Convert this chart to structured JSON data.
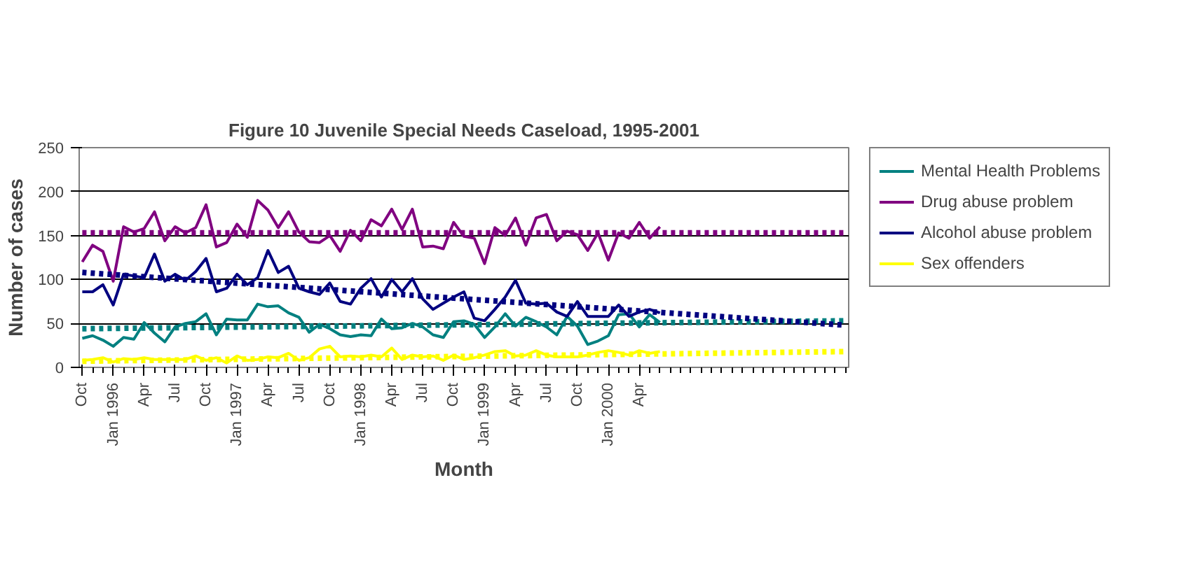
{
  "chart_data": {
    "type": "line",
    "title": "Figure 10 Juvenile Special Needs Caseload, 1995-2001",
    "xlabel": "Month",
    "ylabel": "Number of cases",
    "categories": [
      "Oct",
      null,
      null,
      "Jan 1996",
      null,
      null,
      "Apr",
      null,
      null,
      "Jul",
      null,
      null,
      "Oct",
      null,
      null,
      "Jan 1997",
      null,
      null,
      "Apr",
      null,
      null,
      "Jul",
      null,
      null,
      "Oct",
      null,
      null,
      "Jan 1998",
      null,
      null,
      "Apr",
      null,
      null,
      "Jul",
      null,
      null,
      "Oct",
      null,
      null,
      "Jan 1999",
      null,
      null,
      "Apr",
      null,
      null,
      "Jul",
      null,
      null,
      "Oct",
      null,
      null,
      "Jan 2000",
      null,
      null,
      "Apr",
      null,
      null,
      null,
      null,
      null,
      null,
      null,
      null,
      null,
      null,
      null,
      null,
      null,
      null,
      null,
      null,
      null,
      null,
      null,
      null
    ],
    "ylim": [
      0,
      250
    ],
    "yticks": [
      0,
      50,
      100,
      150,
      200,
      250
    ],
    "grid": "y",
    "legend": "right",
    "marker": "none",
    "series": [
      {
        "name": "Mental Health Problems",
        "color": "#008080",
        "values": [
          33,
          36,
          31,
          24,
          34,
          32,
          51,
          39,
          29,
          46,
          50,
          52,
          61,
          37,
          55,
          54,
          54,
          72,
          69,
          70,
          62,
          57,
          40,
          49,
          44,
          37,
          35,
          37,
          36,
          55,
          44,
          45,
          50,
          46,
          37,
          34,
          52,
          53,
          49,
          34,
          46,
          61,
          47,
          57,
          52,
          46,
          37,
          58,
          47,
          26,
          30,
          36,
          60,
          61,
          46,
          60,
          51,
          null,
          null,
          null,
          null,
          null,
          null,
          null,
          null,
          null,
          null,
          null,
          null,
          null,
          null,
          null,
          null,
          null,
          null
        ]
      },
      {
        "name": "Drug abuse problem",
        "color": "#800080",
        "values": [
          120,
          139,
          132,
          98,
          160,
          154,
          158,
          177,
          144,
          160,
          153,
          159,
          185,
          137,
          142,
          163,
          148,
          190,
          179,
          159,
          177,
          154,
          143,
          142,
          150,
          132,
          156,
          144,
          168,
          161,
          180,
          157,
          180,
          137,
          138,
          135,
          165,
          149,
          147,
          118,
          159,
          150,
          170,
          139,
          170,
          174,
          144,
          155,
          151,
          133,
          153,
          122,
          153,
          147,
          165,
          147,
          160,
          null,
          null,
          null,
          null,
          null,
          null,
          null,
          null,
          null,
          null,
          null,
          null,
          null,
          null,
          null,
          null,
          null,
          null
        ]
      },
      {
        "name": "Alcohol abuse problem",
        "color": "#000080",
        "values": [
          86,
          86,
          94,
          71,
          106,
          104,
          102,
          129,
          98,
          106,
          99,
          109,
          124,
          86,
          90,
          106,
          94,
          102,
          133,
          108,
          115,
          90,
          86,
          83,
          96,
          75,
          72,
          90,
          101,
          80,
          100,
          86,
          101,
          78,
          66,
          73,
          80,
          86,
          56,
          53,
          66,
          80,
          99,
          73,
          72,
          73,
          63,
          58,
          75,
          58,
          58,
          58,
          71,
          58,
          63,
          66,
          62,
          null,
          null,
          null,
          null,
          null,
          null,
          null,
          null,
          null,
          null,
          null,
          null,
          null,
          null,
          null,
          null,
          null,
          null
        ]
      },
      {
        "name": "Sex offenders",
        "color": "#ffff00",
        "values": [
          8,
          9,
          11,
          6,
          10,
          9,
          11,
          9,
          9,
          9,
          9,
          13,
          8,
          11,
          5,
          13,
          8,
          9,
          12,
          11,
          16,
          8,
          11,
          21,
          24,
          12,
          13,
          12,
          14,
          12,
          22,
          9,
          14,
          12,
          13,
          8,
          14,
          9,
          11,
          14,
          18,
          19,
          13,
          14,
          19,
          14,
          12,
          12,
          12,
          14,
          17,
          19,
          17,
          14,
          19,
          16,
          18,
          null,
          null,
          null,
          null,
          null,
          null,
          null,
          null,
          null,
          null,
          null,
          null,
          null,
          null,
          null,
          null,
          null,
          null
        ]
      },
      {
        "color": "#008080",
        "line_style": "dotted",
        "values": [
          44,
          null,
          null,
          null,
          null,
          null,
          null,
          null,
          null,
          null,
          null,
          null,
          null,
          null,
          null,
          null,
          null,
          null,
          null,
          null,
          null,
          null,
          null,
          null,
          null,
          null,
          null,
          null,
          null,
          null,
          null,
          null,
          null,
          null,
          null,
          null,
          null,
          null,
          null,
          null,
          null,
          null,
          null,
          null,
          null,
          null,
          null,
          null,
          null,
          null,
          null,
          null,
          null,
          null,
          null,
          null,
          null,
          null,
          null,
          null,
          null,
          null,
          null,
          null,
          null,
          null,
          null,
          null,
          null,
          null,
          null,
          null,
          null,
          null,
          53
        ]
      },
      {
        "color": "#800080",
        "line_style": "dotted",
        "values": [
          153,
          null,
          null,
          null,
          null,
          null,
          null,
          null,
          null,
          null,
          null,
          null,
          null,
          null,
          null,
          null,
          null,
          null,
          null,
          null,
          null,
          null,
          null,
          null,
          null,
          null,
          null,
          null,
          null,
          null,
          null,
          null,
          null,
          null,
          null,
          null,
          null,
          null,
          null,
          null,
          null,
          null,
          null,
          null,
          null,
          null,
          null,
          null,
          null,
          null,
          null,
          null,
          null,
          null,
          null,
          null,
          null,
          null,
          null,
          null,
          null,
          null,
          null,
          null,
          null,
          null,
          null,
          null,
          null,
          null,
          null,
          null,
          null,
          null,
          153
        ]
      },
      {
        "color": "#000080",
        "line_style": "dotted",
        "values": [
          108,
          null,
          null,
          null,
          null,
          null,
          null,
          null,
          null,
          null,
          null,
          null,
          null,
          null,
          null,
          null,
          null,
          null,
          null,
          null,
          null,
          null,
          null,
          null,
          null,
          null,
          null,
          null,
          null,
          null,
          null,
          null,
          null,
          null,
          null,
          null,
          null,
          null,
          null,
          null,
          null,
          null,
          null,
          null,
          null,
          null,
          null,
          null,
          null,
          null,
          null,
          null,
          null,
          null,
          null,
          null,
          null,
          null,
          null,
          null,
          null,
          null,
          null,
          null,
          null,
          null,
          null,
          null,
          null,
          null,
          null,
          null,
          null,
          null,
          48
        ]
      },
      {
        "color": "#ffff00",
        "line_style": "dotted",
        "values": [
          7,
          null,
          null,
          null,
          null,
          null,
          null,
          null,
          null,
          null,
          null,
          null,
          null,
          null,
          null,
          null,
          null,
          null,
          null,
          null,
          null,
          null,
          null,
          null,
          null,
          null,
          null,
          null,
          null,
          null,
          null,
          null,
          null,
          null,
          null,
          null,
          null,
          null,
          null,
          null,
          null,
          null,
          null,
          null,
          null,
          null,
          null,
          null,
          null,
          null,
          null,
          null,
          null,
          null,
          null,
          null,
          null,
          null,
          null,
          null,
          null,
          null,
          null,
          null,
          null,
          null,
          null,
          null,
          null,
          null,
          null,
          null,
          null,
          null,
          18
        ]
      }
    ]
  }
}
